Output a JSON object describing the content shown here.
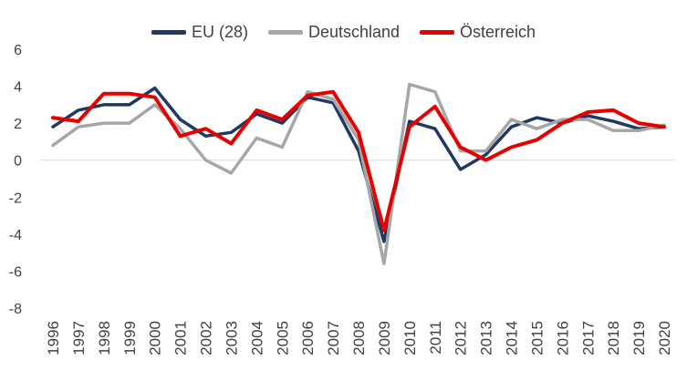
{
  "chart_data": {
    "type": "line",
    "title": "",
    "xlabel": "",
    "ylabel": "",
    "ylim": [
      -8,
      6
    ],
    "yticks": [
      -8,
      -6,
      -4,
      -2,
      0,
      2,
      4,
      6
    ],
    "grid": false,
    "legend_position": "top-center",
    "categories": [
      "1996",
      "1997",
      "1998",
      "1999",
      "2000",
      "2001",
      "2002",
      "2003",
      "2004",
      "2005",
      "2006",
      "2007",
      "2008",
      "2009",
      "2010",
      "2011",
      "2012",
      "2013",
      "2014",
      "2015",
      "2016",
      "2017",
      "2018",
      "2019",
      "2020"
    ],
    "series": [
      {
        "name": "EU (28)",
        "color": "#1f3864",
        "values": [
          1.8,
          2.7,
          3.0,
          3.0,
          3.9,
          2.2,
          1.3,
          1.5,
          2.5,
          2.0,
          3.4,
          3.1,
          0.5,
          -4.4,
          2.1,
          1.7,
          -0.5,
          0.3,
          1.8,
          2.3,
          2.0,
          2.4,
          2.1,
          1.7,
          1.8
        ]
      },
      {
        "name": "Deutschland",
        "color": "#a6a6a6",
        "values": [
          0.8,
          1.8,
          2.0,
          2.0,
          3.0,
          1.7,
          0.0,
          -0.7,
          1.2,
          0.7,
          3.7,
          3.3,
          1.1,
          -5.6,
          4.1,
          3.7,
          0.5,
          0.5,
          2.2,
          1.7,
          2.2,
          2.2,
          1.6,
          1.6,
          1.9
        ]
      },
      {
        "name": "Österreich",
        "color": "#e60000",
        "values": [
          2.3,
          2.1,
          3.6,
          3.6,
          3.4,
          1.3,
          1.7,
          0.9,
          2.7,
          2.2,
          3.5,
          3.7,
          1.5,
          -3.8,
          1.8,
          2.9,
          0.7,
          0.0,
          0.7,
          1.1,
          2.0,
          2.6,
          2.7,
          2.0,
          1.8
        ]
      }
    ]
  }
}
